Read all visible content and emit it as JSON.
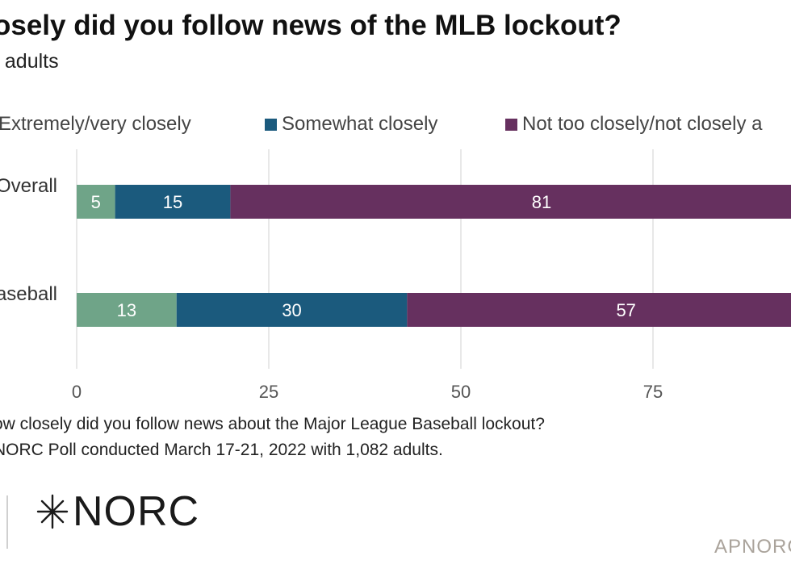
{
  "chart_data": {
    "type": "bar",
    "orientation": "horizontal",
    "stacked": true,
    "title": "osely did you follow news of the MLB lockout?",
    "subtitle": "f adults",
    "categories": [
      "Overall",
      "Baseball"
    ],
    "category_labels": [
      "Overall",
      "aseball"
    ],
    "series": [
      {
        "name": "Extremely/very closely",
        "values": [
          5,
          13
        ],
        "color": "#6fa488"
      },
      {
        "name": "Somewhat closely",
        "values": [
          15,
          30
        ],
        "color": "#1b5a7d"
      },
      {
        "name": "Not too closely/not closely a",
        "values": [
          81,
          57
        ],
        "color": "#66305f"
      }
    ],
    "xlim": [
      0,
      100
    ],
    "x_ticks": [
      0,
      25,
      50,
      75
    ],
    "grid": true,
    "legend_position": "top"
  },
  "notes": {
    "question": "ow closely did you follow news about the Major League Baseball lockout?",
    "source": "NORC Poll conducted March 17-21, 2022 with 1,082 adults."
  },
  "logo": {
    "text": "NORC",
    "icon": "norc-star-icon"
  },
  "site": {
    "text": "APNORC"
  }
}
